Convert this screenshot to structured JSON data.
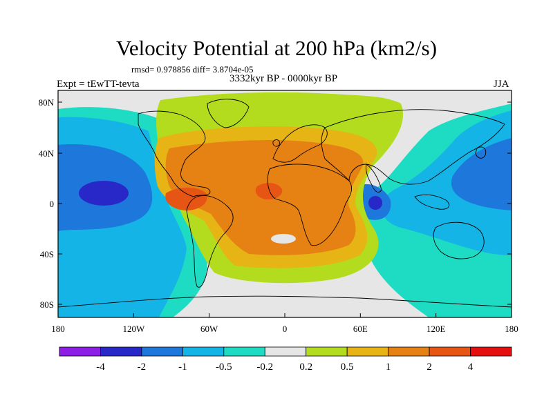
{
  "title": "Velocity Potential at 200 hPa (km2/s)",
  "stats_text": "rmsd= 0.978856 diff= 3.8704e-05",
  "period_text": "3332kyr BP - 0000kyr BP",
  "experiment_text": "Expt = tEwTT-tevta",
  "season_text": "JJA",
  "lat_labels": [
    "80N",
    "40N",
    "0",
    "40S",
    "80S"
  ],
  "lon_labels": [
    "180",
    "120W",
    "60W",
    "0",
    "60E",
    "120E",
    "180"
  ],
  "colorbar": {
    "levels": [
      "-4",
      "-2",
      "-1",
      "-0.5",
      "-0.2",
      "0.2",
      "0.5",
      "1",
      "2",
      "4"
    ],
    "colors": [
      "#8c1ee6",
      "#2828c8",
      "#1e78dc",
      "#14b4e6",
      "#1edcc3",
      "#e6e6e6",
      "#b4dc1e",
      "#e6b414",
      "#e68214",
      "#e65514",
      "#e60f0f"
    ]
  },
  "palette": {
    "ocean_cyan": "#14b4e6",
    "mid_blue": "#1e78dc",
    "deep_blue": "#2828c8",
    "teal": "#1edcc3",
    "neutral_gray": "#e6e6e6",
    "yellow_green": "#b4dc1e",
    "gold": "#e6b414",
    "orange": "#e68214",
    "red_orange": "#e65514",
    "coastline": "#000000"
  }
}
